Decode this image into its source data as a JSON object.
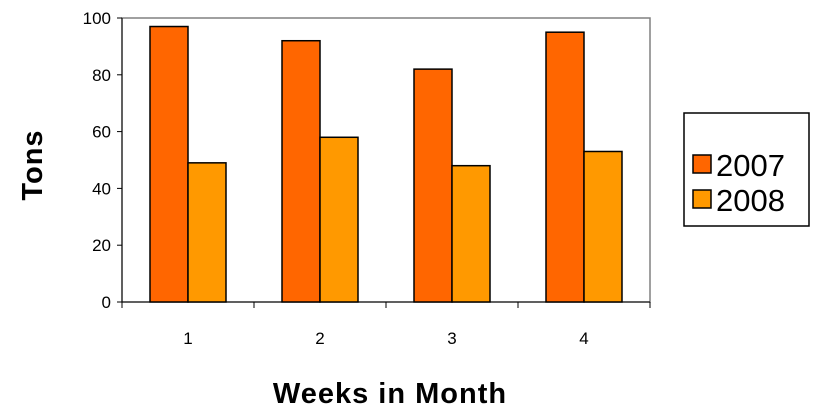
{
  "chart_data": {
    "type": "bar",
    "title": "",
    "xlabel": "Weeks in Month",
    "ylabel": "Tons",
    "categories": [
      "1",
      "2",
      "3",
      "4"
    ],
    "series": [
      {
        "name": "2007",
        "values": [
          97,
          92,
          82,
          95
        ],
        "color": "#ff6600"
      },
      {
        "name": "2008",
        "values": [
          49,
          58,
          48,
          53
        ],
        "color": "#ff9900"
      }
    ],
    "ylim": [
      0,
      100
    ],
    "yticks": [
      "0",
      "20",
      "40",
      "60",
      "80",
      "100"
    ],
    "grid": false,
    "legend": "right"
  }
}
